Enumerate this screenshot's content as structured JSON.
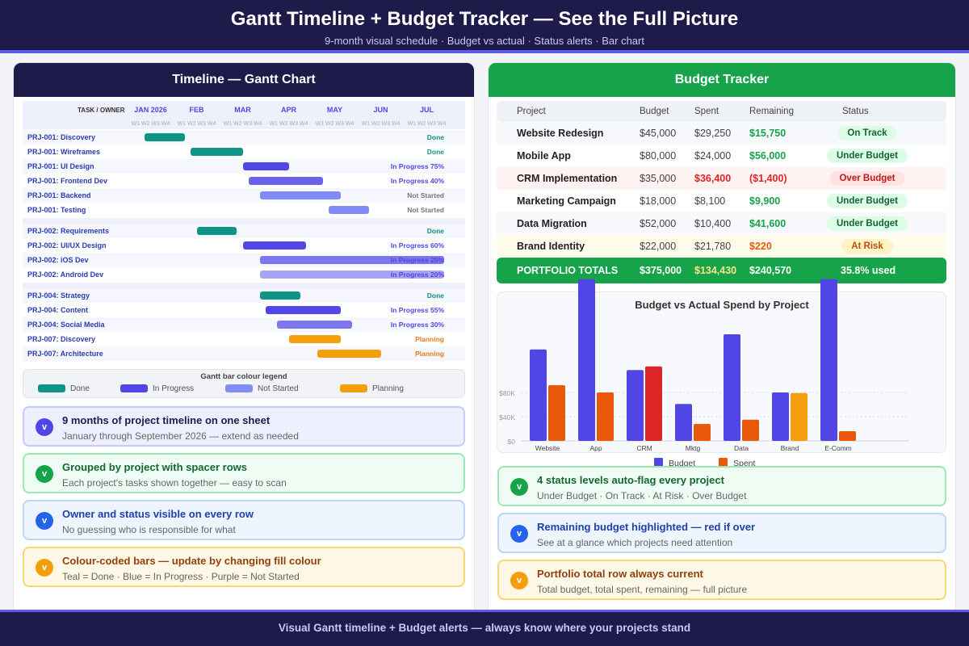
{
  "header": {
    "title": "Gantt Timeline + Budget Tracker — See the Full Picture",
    "subtitle": "9-month visual schedule · Budget vs actual · Status alerts · Bar chart"
  },
  "gantt": {
    "title": "Timeline — Gantt Chart",
    "col_header": "TASK / OWNER",
    "months": [
      "JAN 2026",
      "FEB",
      "MAR",
      "APR",
      "MAY",
      "JUN",
      "JUL"
    ],
    "weeks_label": "W1 W2 W3 W4",
    "colors": {
      "done": "#0f9488",
      "in_progress": "#4f46e5",
      "not_started": "#818cf8",
      "planning": "#f59e0b"
    },
    "groups": [
      [
        {
          "task": "PRJ-001: Discovery",
          "status": "Done",
          "kind": "done",
          "start_week": 1.5,
          "end_week": 5
        },
        {
          "task": "PRJ-001: Wireframes",
          "status": "Done",
          "kind": "done",
          "start_week": 5.5,
          "end_week": 10
        },
        {
          "task": "PRJ-001: UI Design",
          "status": "In Progress 75%",
          "kind": "in_progress",
          "start_week": 10,
          "end_week": 14,
          "color": "#4f46e5"
        },
        {
          "task": "PRJ-001: Frontend Dev",
          "status": "In Progress 40%",
          "kind": "in_progress",
          "start_week": 10.5,
          "end_week": 17,
          "color": "#6d63ea"
        },
        {
          "task": "PRJ-001: Backend",
          "status": "Not Started",
          "kind": "not_started",
          "start_week": 11.5,
          "end_week": 18.5
        },
        {
          "task": "PRJ-001: Testing",
          "status": "Not Started",
          "kind": "not_started",
          "start_week": 17.5,
          "end_week": 21
        }
      ],
      [
        {
          "task": "PRJ-002: Requirements",
          "status": "Done",
          "kind": "done",
          "start_week": 6,
          "end_week": 9.5
        },
        {
          "task": "PRJ-002: UI/UX Design",
          "status": "In Progress 60%",
          "kind": "in_progress",
          "start_week": 10,
          "end_week": 15.5,
          "color": "#4f46e5"
        },
        {
          "task": "PRJ-002: iOS Dev",
          "status": "In Progress 25%",
          "kind": "in_progress",
          "start_week": 11.5,
          "end_week": 27.5,
          "color": "#7d76ec"
        },
        {
          "task": "PRJ-002: Android Dev",
          "status": "In Progress 20%",
          "kind": "in_progress",
          "start_week": 11.5,
          "end_week": 27.5,
          "color": "#a8a3f2"
        }
      ],
      [
        {
          "task": "PRJ-004: Strategy",
          "status": "Done",
          "kind": "done",
          "start_week": 11.5,
          "end_week": 15
        },
        {
          "task": "PRJ-004: Content",
          "status": "In Progress 55%",
          "kind": "in_progress",
          "start_week": 12,
          "end_week": 18.5,
          "color": "#4f46e5"
        },
        {
          "task": "PRJ-004: Social Media",
          "status": "In Progress 30%",
          "kind": "in_progress",
          "start_week": 13,
          "end_week": 19.5,
          "color": "#7d76ec"
        },
        {
          "task": "PRJ-007: Discovery",
          "status": "Planning",
          "kind": "planning",
          "start_week": 14,
          "end_week": 18.5
        },
        {
          "task": "PRJ-007: Architecture",
          "status": "Planning",
          "kind": "planning",
          "start_week": 16.5,
          "end_week": 22
        }
      ]
    ],
    "legend": {
      "title": "Gantt bar colour legend",
      "items": [
        {
          "label": "Done",
          "color": "#0f9488"
        },
        {
          "label": "In Progress",
          "color": "#4f46e5"
        },
        {
          "label": "Not Started",
          "color": "#818cf8"
        },
        {
          "label": "Planning",
          "color": "#f59e0b"
        }
      ]
    }
  },
  "left_cards": [
    {
      "title": "9 months of project timeline on one sheet",
      "sub": "January through September 2026 — extend as needed",
      "icon": "v",
      "theme": "indigo"
    },
    {
      "title": "Grouped by project with spacer rows",
      "sub": "Each project's tasks shown together — easy to scan",
      "icon": "v",
      "theme": "green"
    },
    {
      "title": "Owner and status visible on every row",
      "sub": "No guessing who is responsible for what",
      "icon": "v",
      "theme": "blue"
    },
    {
      "title": "Colour-coded bars — update by changing fill colour",
      "sub": "Teal = Done · Blue = In Progress · Purple = Not Started",
      "icon": "v",
      "theme": "amber"
    }
  ],
  "budget": {
    "title": "Budget Tracker",
    "columns": [
      "Project",
      "Budget",
      "Spent",
      "Remaining",
      "Status"
    ],
    "rows": [
      {
        "project": "Website Redesign",
        "budget": "$45,000",
        "spent": "$29,250",
        "remaining": "$15,750",
        "status": "On Track",
        "tone": "ok"
      },
      {
        "project": "Mobile App",
        "budget": "$80,000",
        "spent": "$24,000",
        "remaining": "$56,000",
        "status": "Under Budget",
        "tone": "ok"
      },
      {
        "project": "CRM Implementation",
        "budget": "$35,000",
        "spent": "$36,400",
        "remaining": "($1,400)",
        "status": "Over Budget",
        "tone": "over"
      },
      {
        "project": "Marketing Campaign",
        "budget": "$18,000",
        "spent": "$8,100",
        "remaining": "$9,900",
        "status": "Under Budget",
        "tone": "ok"
      },
      {
        "project": "Data Migration",
        "budget": "$52,000",
        "spent": "$10,400",
        "remaining": "$41,600",
        "status": "Under Budget",
        "tone": "ok"
      },
      {
        "project": "Brand Identity",
        "budget": "$22,000",
        "spent": "$21,780",
        "remaining": "$220",
        "status": "At Risk",
        "tone": "risk"
      }
    ],
    "totals": {
      "label": "PORTFOLIO TOTALS",
      "budget": "$375,000",
      "spent": "$134,430",
      "remaining": "$240,570",
      "used": "35.8% used"
    }
  },
  "chart_data": {
    "type": "bar",
    "title": "Budget vs Actual Spend by Project",
    "categories": [
      "Website",
      "App",
      "CRM",
      "Mktg",
      "Data",
      "Brand",
      "E-Comm"
    ],
    "yticks": [
      "$0",
      "$40K",
      "$80K"
    ],
    "ylim": [
      0,
      267
    ],
    "series": [
      {
        "name": "Budget",
        "color": "#4f46e5",
        "values": [
          151,
          267,
          117,
          61,
          176,
          80,
          267
        ]
      },
      {
        "name": "Spent",
        "color": "#ea580c",
        "values": [
          92,
          80,
          123,
          28,
          35,
          79,
          16
        ],
        "colors": [
          "#ea580c",
          "#ea580c",
          "#dc2626",
          "#ea580c",
          "#ea580c",
          "#f59e0b",
          "#ea580c"
        ]
      }
    ],
    "legend": "bottom",
    "grid": true
  },
  "right_cards": [
    {
      "title": "4 status levels auto-flag every project",
      "sub": "Under Budget · On Track · At Risk · Over Budget",
      "icon": "v",
      "theme": "green"
    },
    {
      "title": "Remaining budget highlighted — red if over",
      "sub": "See at a glance which projects need attention",
      "icon": "v",
      "theme": "blue"
    },
    {
      "title": "Portfolio total row always current",
      "sub": "Total budget, total spent, remaining — full picture",
      "icon": "v",
      "theme": "amber"
    }
  ],
  "footer": "Visual Gantt timeline + Budget alerts — always know where your projects stand"
}
